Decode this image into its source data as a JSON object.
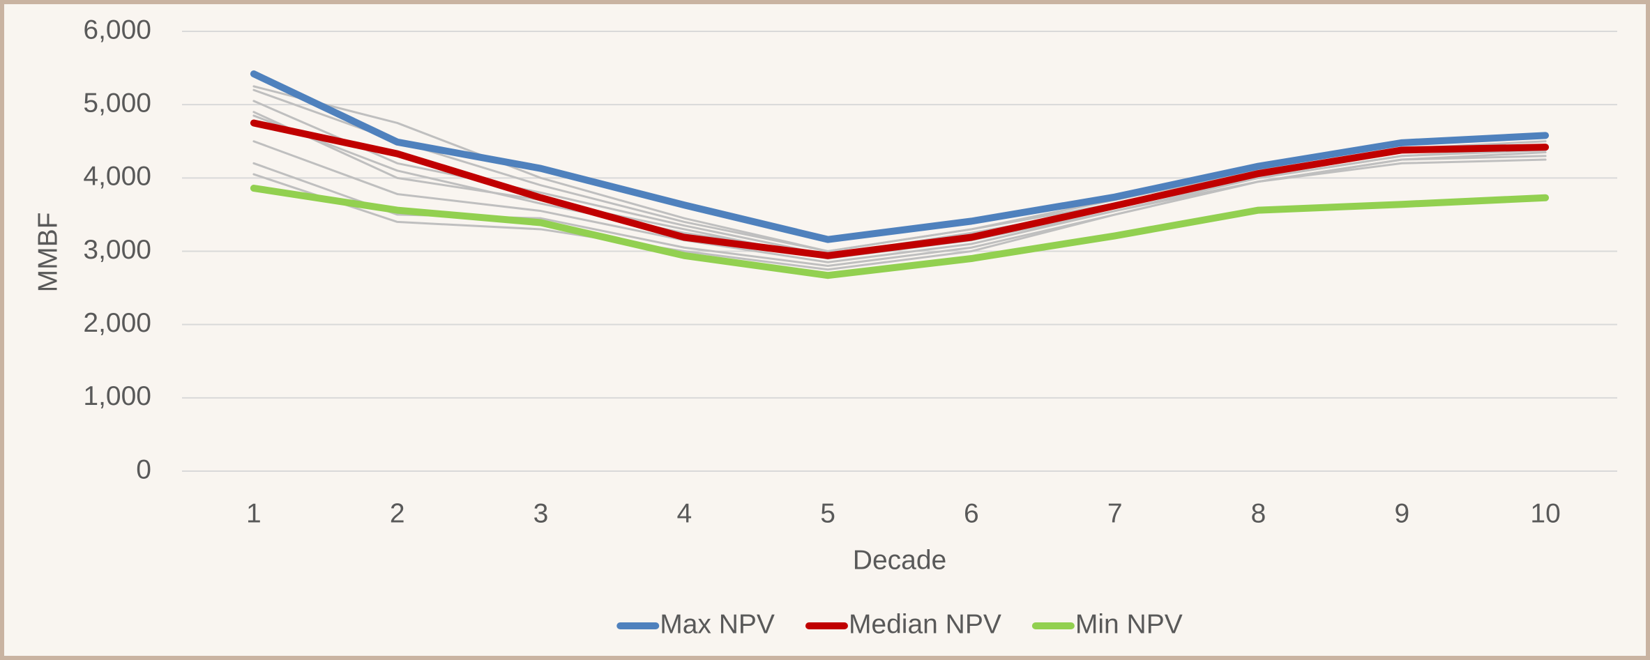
{
  "chart_data": {
    "type": "line",
    "x_label": "Decade",
    "y_label": "MMBF",
    "categories": [
      "1",
      "2",
      "3",
      "4",
      "5",
      "6",
      "7",
      "8",
      "9",
      "10"
    ],
    "ylim": [
      0,
      6000
    ],
    "yticks": [
      0,
      {
        "value": 1000,
        "label": "1,000"
      },
      {
        "value": 2000,
        "label": "2,000"
      },
      {
        "value": 3000,
        "label": "3,000"
      },
      {
        "value": 4000,
        "label": "4,000"
      },
      {
        "value": 5000,
        "label": "5,000"
      },
      {
        "value": 6000,
        "label": "6,000"
      }
    ],
    "grid": true,
    "legend": "bottom",
    "series": [
      {
        "color": "#bfbfbf",
        "values": [
          5250,
          4750,
          4000,
          3450,
          3000,
          3300,
          3650,
          4050,
          4350,
          4450
        ]
      },
      {
        "color": "#bfbfbf",
        "values": [
          5050,
          4200,
          3800,
          3350,
          2950,
          3250,
          3600,
          4000,
          4300,
          4400
        ]
      },
      {
        "color": "#bfbfbf",
        "values": [
          4900,
          4000,
          3700,
          3300,
          2900,
          3150,
          3550,
          3950,
          4250,
          4350
        ]
      },
      {
        "color": "#bfbfbf",
        "values": [
          4500,
          3780,
          3550,
          3150,
          2850,
          3100,
          3550,
          4000,
          4300,
          4380
        ]
      },
      {
        "color": "#bfbfbf",
        "values": [
          4200,
          3500,
          3450,
          3050,
          2800,
          3050,
          3500,
          3950,
          4200,
          4250
        ]
      },
      {
        "color": "#bfbfbf",
        "values": [
          4050,
          3400,
          3300,
          3000,
          2750,
          3000,
          3500,
          3950,
          4250,
          4300
        ]
      },
      {
        "color": "#bfbfbf",
        "values": [
          4850,
          4100,
          3650,
          3250,
          2950,
          3200,
          3600,
          4050,
          4350,
          4400
        ]
      },
      {
        "color": "#bfbfbf",
        "values": [
          5200,
          4500,
          3900,
          3400,
          3000,
          3300,
          3700,
          4100,
          4400,
          4500
        ]
      },
      {
        "name": "Max NPV",
        "color": "#4f81bd",
        "values": [
          5420,
          4490,
          4130,
          3630,
          3160,
          3410,
          3740,
          4160,
          4480,
          4580
        ]
      },
      {
        "name": "Median NPV",
        "color": "#c00000",
        "values": [
          4750,
          4330,
          3730,
          3190,
          2940,
          3190,
          3620,
          4060,
          4380,
          4420
        ]
      },
      {
        "name": "Min NPV",
        "color": "#92d050",
        "values": [
          3860,
          3560,
          3390,
          2940,
          2670,
          2900,
          3210,
          3560,
          3640,
          3730
        ]
      }
    ]
  }
}
